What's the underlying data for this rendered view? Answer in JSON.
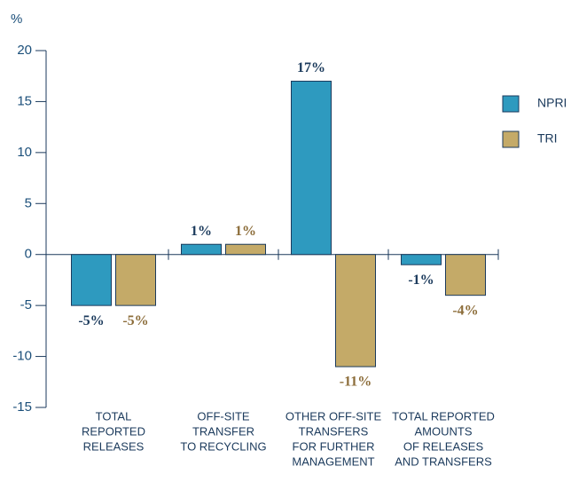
{
  "chart_data": {
    "type": "bar",
    "y_label": "%",
    "categories": [
      [
        "TOTAL",
        "REPORTED",
        "RELEASES"
      ],
      [
        "OFF-SITE",
        "TRANSFER",
        "TO RECYCLING"
      ],
      [
        "OTHER OFF-SITE",
        "TRANSFERS",
        "FOR FURTHER",
        "MANAGEMENT"
      ],
      [
        "TOTAL REPORTED",
        "AMOUNTS",
        "OF RELEASES",
        "AND TRANSFERS"
      ]
    ],
    "series": [
      {
        "name": "NPRI",
        "color": "#2e9abf",
        "label_color": "#1b3a5c",
        "values": [
          -5,
          1,
          17,
          -1
        ],
        "value_labels": [
          "-5%",
          "1%",
          "17%",
          "-1%"
        ]
      },
      {
        "name": "TRI",
        "color": "#c4aa68",
        "label_color": "#8c6d3a",
        "values": [
          -5,
          1,
          -11,
          -4
        ],
        "value_labels": [
          "-5%",
          "1%",
          "-11%",
          "-4%"
        ]
      }
    ],
    "ylim": [
      -15,
      20
    ],
    "yticks": [
      -15,
      -10,
      -5,
      0,
      5,
      10,
      15,
      20
    ],
    "legend": "right"
  }
}
